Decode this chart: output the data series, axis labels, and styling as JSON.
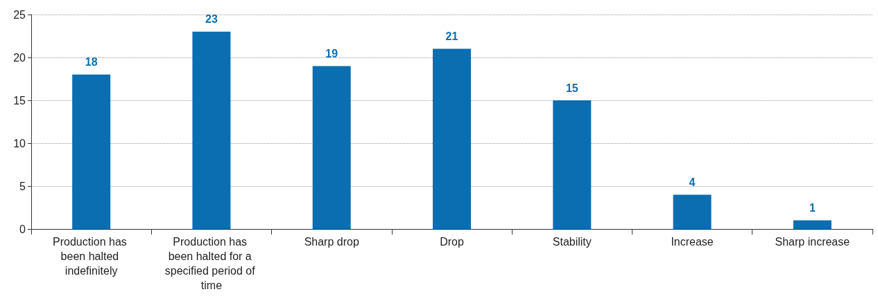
{
  "chart_data": {
    "type": "bar",
    "categories": [
      "Production has been halted indefinitely",
      "Production has been halted for a specified period of time",
      "Sharp drop",
      "Drop",
      "Stability",
      "Increase",
      "Sharp increase"
    ],
    "values": [
      18,
      23,
      19,
      21,
      15,
      4,
      1
    ],
    "color": "#0a6eb1",
    "ylim": [
      0,
      25
    ],
    "yticks": [
      0,
      5,
      10,
      15,
      20,
      25
    ],
    "grid": "y",
    "data_labels": true
  }
}
